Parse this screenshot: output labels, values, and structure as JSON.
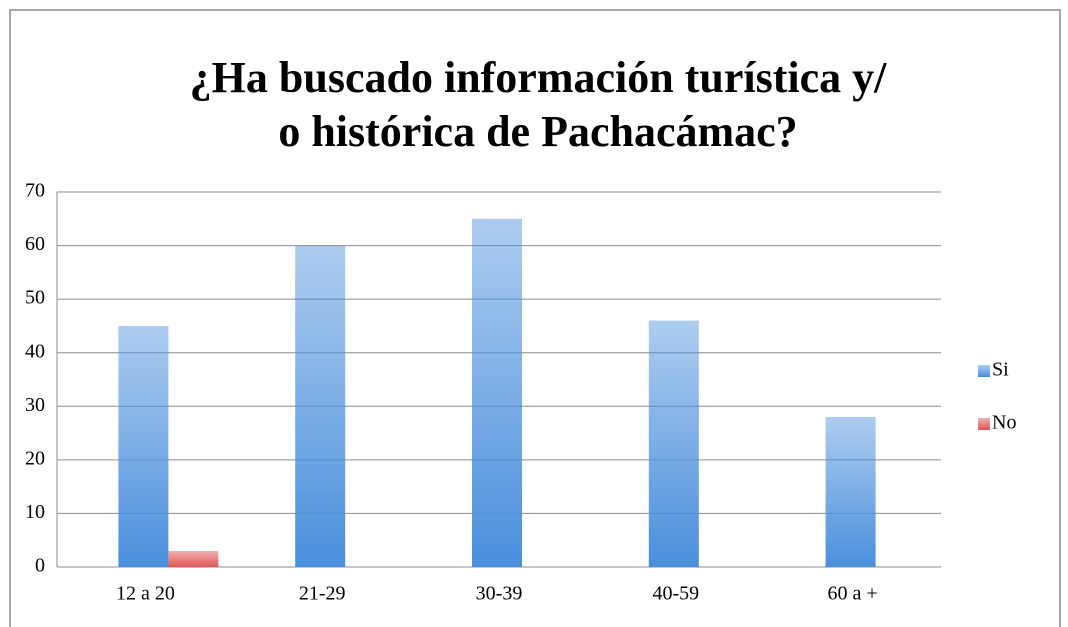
{
  "chart_data": {
    "type": "bar",
    "title": [
      "¿Ha buscado información turística y/",
      "o histórica de Pachacámac?"
    ],
    "categories": [
      "12 a 20",
      "21-29",
      "30-39",
      "40-59",
      "60 a +"
    ],
    "series": [
      {
        "name": "Si",
        "color": "#4a8fdc",
        "values": [
          45,
          60,
          65,
          46,
          28
        ]
      },
      {
        "name": "No",
        "color": "#e05555",
        "values": [
          3,
          0,
          0,
          0,
          0
        ]
      }
    ],
    "ylim": [
      0,
      70
    ],
    "yticks": [
      0,
      10,
      20,
      30,
      40,
      50,
      60,
      70
    ],
    "grid": true,
    "legend": "right"
  }
}
